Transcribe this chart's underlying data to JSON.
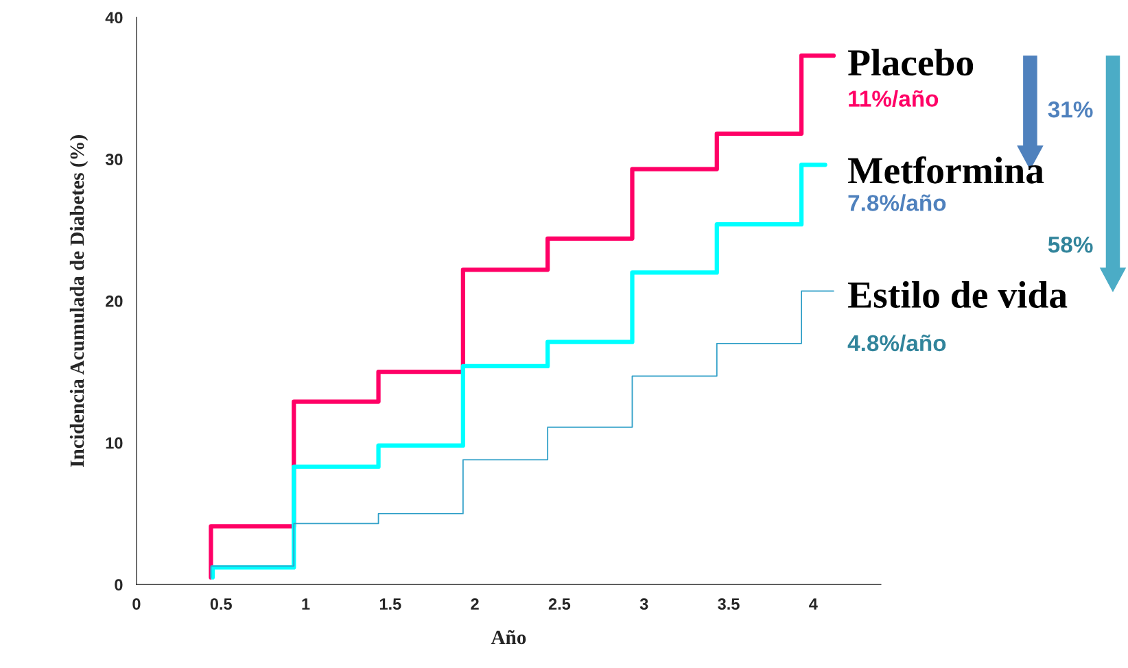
{
  "chart_data": {
    "type": "step",
    "xlabel": "Año",
    "ylabel": "Incidencia Acumulada de Diabetes (%)",
    "xlim": [
      0,
      4.4
    ],
    "xticks": [
      0,
      {
        "value": 0.5,
        "label": "0.5"
      },
      1,
      {
        "value": 1.5,
        "label": "1.5"
      },
      2,
      {
        "value": 2.5,
        "label": "2.5"
      },
      3,
      {
        "value": 3.5,
        "label": "3.5"
      },
      4
    ],
    "ylim": [
      0,
      40
    ],
    "yticks": [
      0,
      10,
      20,
      30,
      40
    ],
    "grid": false,
    "legend": false,
    "series": [
      {
        "name": "Placebo",
        "color": "#ff0066",
        "x": [
          0.44,
          0.44,
          0.93,
          1.43,
          1.93,
          2.43,
          2.93,
          3.43,
          3.93,
          4.12
        ],
        "values": [
          0.5,
          4.1,
          12.9,
          15.0,
          22.2,
          24.4,
          29.3,
          31.8,
          37.3,
          37.3
        ]
      },
      {
        "name": "Metformina",
        "color": "#00ffff",
        "x": [
          0.45,
          0.45,
          0.93,
          1.43,
          1.93,
          2.43,
          2.93,
          3.43,
          3.93,
          4.07
        ],
        "values": [
          0.5,
          1.2,
          8.3,
          9.8,
          15.4,
          17.1,
          22.0,
          25.4,
          29.6,
          29.6
        ]
      },
      {
        "name": "Estilo de vida",
        "color": "#31a0c8",
        "x": [
          0.44,
          0.44,
          0.93,
          1.43,
          1.93,
          2.43,
          2.93,
          3.43,
          3.93,
          4.12
        ],
        "values": [
          0.5,
          1.3,
          4.3,
          5.0,
          8.8,
          11.1,
          14.7,
          17.0,
          20.7,
          20.7
        ]
      }
    ],
    "annotations": [
      "11%/año",
      "7.8%/año",
      "4.8%/año",
      "31%",
      "58%"
    ]
  }
}
